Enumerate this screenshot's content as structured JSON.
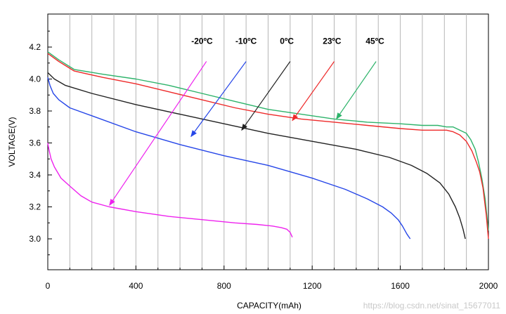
{
  "watermark": "https://blog.csdn.net/sinat_15677011",
  "chart_data": {
    "type": "line",
    "xlabel": "CAPACITY(mAh)",
    "ylabel": "VOLTAGE(V)",
    "xlim": [
      0,
      2000
    ],
    "ylim": [
      2.8,
      4.35
    ],
    "xticks": [
      0,
      400,
      800,
      1200,
      1600,
      2000
    ],
    "yticks": [
      3.0,
      3.2,
      3.4,
      3.6,
      3.8,
      4.0,
      4.2
    ],
    "xtick_labels": [
      "0",
      "400",
      "800",
      "1200",
      "1600",
      "2000"
    ],
    "ytick_labels": [
      "3.0",
      "3.2",
      "3.4",
      "3.6",
      "3.8",
      "4.0",
      "4.2"
    ],
    "grid": true,
    "series": [
      {
        "name": "45ºC",
        "color": "#2db36a",
        "x": [
          0,
          50,
          120,
          250,
          400,
          550,
          700,
          850,
          1000,
          1150,
          1300,
          1450,
          1600,
          1700,
          1770,
          1810,
          1840,
          1870,
          1900,
          1920,
          1940,
          1955,
          1970,
          1985,
          1995,
          2000
        ],
        "y": [
          4.17,
          4.12,
          4.06,
          4.03,
          4.0,
          3.96,
          3.91,
          3.86,
          3.81,
          3.78,
          3.75,
          3.73,
          3.72,
          3.71,
          3.71,
          3.7,
          3.7,
          3.68,
          3.66,
          3.62,
          3.56,
          3.48,
          3.38,
          3.25,
          3.12,
          3.05
        ]
      },
      {
        "name": "23ºC",
        "color": "#ee2a2a",
        "x": [
          0,
          50,
          120,
          250,
          400,
          550,
          700,
          850,
          1000,
          1150,
          1300,
          1450,
          1600,
          1700,
          1770,
          1810,
          1840,
          1870,
          1900,
          1925,
          1945,
          1960,
          1975,
          1990,
          2000
        ],
        "y": [
          4.16,
          4.11,
          4.05,
          4.01,
          3.97,
          3.92,
          3.87,
          3.82,
          3.78,
          3.75,
          3.73,
          3.71,
          3.69,
          3.68,
          3.68,
          3.68,
          3.67,
          3.65,
          3.61,
          3.55,
          3.48,
          3.42,
          3.32,
          3.15,
          3.0
        ]
      },
      {
        "name": "0ºC",
        "color": "#222222",
        "x": [
          0,
          30,
          80,
          200,
          400,
          600,
          800,
          1000,
          1200,
          1400,
          1550,
          1650,
          1720,
          1780,
          1820,
          1850,
          1870,
          1885,
          1895
        ],
        "y": [
          4.04,
          4.0,
          3.96,
          3.91,
          3.84,
          3.78,
          3.72,
          3.66,
          3.61,
          3.56,
          3.51,
          3.46,
          3.41,
          3.35,
          3.28,
          3.2,
          3.13,
          3.06,
          3.0
        ]
      },
      {
        "name": "-10ºC",
        "color": "#2646e8",
        "x": [
          0,
          10,
          25,
          50,
          100,
          200,
          400,
          600,
          800,
          1000,
          1200,
          1350,
          1450,
          1520,
          1560,
          1590,
          1610,
          1630,
          1645
        ],
        "y": [
          4.01,
          3.96,
          3.91,
          3.87,
          3.82,
          3.77,
          3.67,
          3.59,
          3.52,
          3.46,
          3.38,
          3.31,
          3.25,
          3.2,
          3.16,
          3.12,
          3.08,
          3.03,
          3.0
        ]
      },
      {
        "name": "-20ºC",
        "color": "#ee22ee",
        "x": [
          0,
          5,
          15,
          30,
          60,
          100,
          150,
          200,
          280,
          400,
          550,
          700,
          850,
          950,
          1020,
          1060,
          1085,
          1100,
          1110
        ],
        "y": [
          3.6,
          3.56,
          3.5,
          3.45,
          3.38,
          3.33,
          3.27,
          3.23,
          3.2,
          3.17,
          3.14,
          3.12,
          3.1,
          3.09,
          3.08,
          3.07,
          3.06,
          3.04,
          3.01
        ]
      }
    ],
    "annotations": [
      {
        "label": "-20ºC",
        "color": "#ee22ee",
        "text_at": [
          700,
          4.22
        ],
        "arrow_from": [
          720,
          4.11
        ],
        "arrow_to": [
          280,
          3.21
        ]
      },
      {
        "label": "-10ºC",
        "color": "#2646e8",
        "text_at": [
          900,
          4.22
        ],
        "arrow_from": [
          900,
          4.11
        ],
        "arrow_to": [
          650,
          3.64
        ]
      },
      {
        "label": "0ºC",
        "color": "#222222",
        "text_at": [
          1085,
          4.22
        ],
        "arrow_from": [
          1100,
          4.11
        ],
        "arrow_to": [
          880,
          3.68
        ]
      },
      {
        "label": "23ºC",
        "color": "#ee2a2a",
        "text_at": [
          1290,
          4.22
        ],
        "arrow_from": [
          1300,
          4.11
        ],
        "arrow_to": [
          1110,
          3.74
        ]
      },
      {
        "label": "45ºC",
        "color": "#2db36a",
        "text_at": [
          1485,
          4.22
        ],
        "arrow_from": [
          1490,
          4.11
        ],
        "arrow_to": [
          1310,
          3.75
        ]
      }
    ]
  }
}
